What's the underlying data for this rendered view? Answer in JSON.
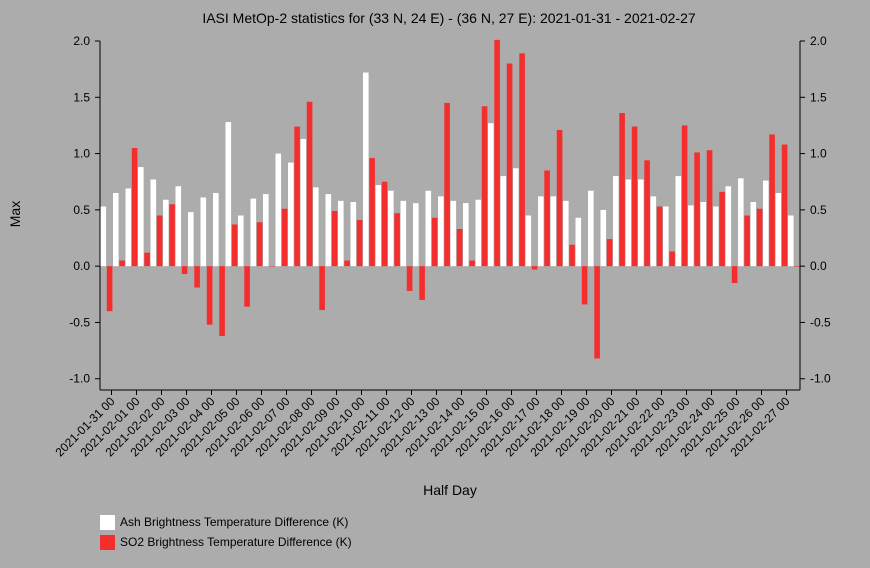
{
  "chart_data": {
    "type": "bar",
    "title": "IASI MetOp-2 statistics for (33 N, 24 E) - (36 N, 27 E): 2021-01-31 - 2021-02-27",
    "xlabel": "Half Day",
    "ylabel": "Max",
    "ylim": [
      -1.1,
      2.0
    ],
    "yticks": [
      "2.0",
      "1.5",
      "1.0",
      "0.5",
      "0.0",
      "-0.5",
      "-1.0"
    ],
    "ytick_values": [
      2.0,
      1.5,
      1.0,
      0.5,
      0.0,
      -0.5,
      -1.0
    ],
    "categories": [
      "2021-01-31 00",
      "2021-01-31 12",
      "2021-02-01 00",
      "2021-02-01 12",
      "2021-02-02 00",
      "2021-02-02 12",
      "2021-02-03 00",
      "2021-02-03 12",
      "2021-02-04 00",
      "2021-02-04 12",
      "2021-02-05 00",
      "2021-02-05 12",
      "2021-02-06 00",
      "2021-02-06 12",
      "2021-02-07 00",
      "2021-02-07 12",
      "2021-02-08 00",
      "2021-02-08 12",
      "2021-02-09 00",
      "2021-02-09 12",
      "2021-02-10 00",
      "2021-02-10 12",
      "2021-02-11 00",
      "2021-02-11 12",
      "2021-02-12 00",
      "2021-02-12 12",
      "2021-02-13 00",
      "2021-02-13 12",
      "2021-02-14 00",
      "2021-02-14 12",
      "2021-02-15 00",
      "2021-02-15 12",
      "2021-02-16 00",
      "2021-02-16 12",
      "2021-02-17 00",
      "2021-02-17 12",
      "2021-02-18 00",
      "2021-02-18 12",
      "2021-02-19 00",
      "2021-02-19 12",
      "2021-02-20 00",
      "2021-02-20 12",
      "2021-02-21 00",
      "2021-02-21 12",
      "2021-02-22 00",
      "2021-02-22 12",
      "2021-02-23 00",
      "2021-02-23 12",
      "2021-02-24 00",
      "2021-02-24 12",
      "2021-02-25 00",
      "2021-02-25 12",
      "2021-02-26 00",
      "2021-02-26 12",
      "2021-02-27 00",
      "2021-02-27 12"
    ],
    "tick_labels": [
      "2021-01-31 00",
      "2021-02-01 00",
      "2021-02-02 00",
      "2021-02-03 00",
      "2021-02-04 00",
      "2021-02-05 00",
      "2021-02-06 00",
      "2021-02-07 00",
      "2021-02-08 00",
      "2021-02-09 00",
      "2021-02-10 00",
      "2021-02-11 00",
      "2021-02-12 00",
      "2021-02-13 00",
      "2021-02-14 00",
      "2021-02-15 00",
      "2021-02-16 00",
      "2021-02-17 00",
      "2021-02-18 00",
      "2021-02-19 00",
      "2021-02-20 00",
      "2021-02-21 00",
      "2021-02-22 00",
      "2021-02-23 00",
      "2021-02-24 00",
      "2021-02-25 00",
      "2021-02-26 00",
      "2021-02-27 00"
    ],
    "series": [
      {
        "name": "Ash Brightness Temperature Difference (K)",
        "color": "#ffffff",
        "values": [
          0.53,
          0.65,
          0.69,
          0.88,
          0.77,
          0.59,
          0.71,
          0.48,
          0.61,
          0.65,
          1.28,
          0.45,
          0.6,
          0.64,
          1.0,
          0.92,
          1.13,
          0.7,
          0.64,
          0.58,
          0.57,
          1.72,
          0.72,
          0.67,
          0.58,
          0.56,
          0.67,
          0.62,
          0.58,
          0.56,
          0.59,
          1.27,
          0.8,
          0.87,
          0.45,
          0.62,
          0.62,
          0.58,
          0.43,
          0.67,
          0.5,
          0.8,
          0.77,
          0.77,
          0.62,
          0.53,
          0.8,
          0.54,
          0.57,
          0.53,
          0.71,
          0.78,
          0.57,
          0.76,
          0.65,
          0.45
        ]
      },
      {
        "name": "SO2 Brightness Temperature Difference (K)",
        "color": "#f42d2d",
        "values": [
          -0.4,
          0.05,
          1.05,
          0.12,
          0.45,
          0.55,
          -0.07,
          -0.19,
          -0.52,
          -0.62,
          0.37,
          -0.36,
          0.39,
          0.0,
          0.51,
          1.24,
          1.46,
          -0.39,
          0.49,
          0.05,
          0.41,
          0.96,
          0.75,
          0.47,
          -0.22,
          -0.3,
          0.43,
          1.45,
          0.33,
          0.05,
          1.42,
          2.01,
          1.8,
          1.89,
          -0.03,
          0.85,
          1.21,
          0.19,
          -0.34,
          -0.82,
          0.24,
          1.36,
          1.24,
          0.94,
          0.53,
          0.13,
          1.25,
          1.01,
          1.03,
          0.66,
          -0.15,
          0.45,
          0.51,
          1.17,
          1.08,
          0.0
        ]
      }
    ],
    "legend_position": "bottom-left",
    "grid": false
  }
}
